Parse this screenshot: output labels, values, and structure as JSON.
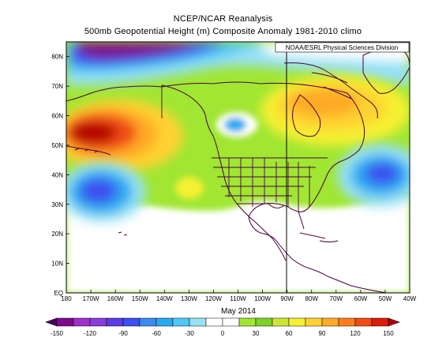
{
  "title": "NCEP/NCAR Reanalysis",
  "subtitle": "500mb Geopotential Height (m) Composite Anomaly 1981-2010 climo",
  "credit": "NOAA/ESRL Physical Sciences Division",
  "date_label": "May 2014",
  "lat_labels": [
    "80N",
    "70N",
    "60N",
    "50N",
    "40N",
    "30N",
    "20N",
    "10N",
    "EQ"
  ],
  "lon_labels": [
    "180",
    "170W",
    "160W",
    "150W",
    "140W",
    "130W",
    "120W",
    "110W",
    "100W",
    "90W",
    "80W",
    "70W",
    "60W",
    "50W",
    "40W"
  ],
  "colorbar": {
    "ticks": [
      "-150",
      "-120",
      "-90",
      "-60",
      "-30",
      "0",
      "30",
      "60",
      "90",
      "120",
      "150"
    ],
    "colors": [
      "#4a0060",
      "#7d0a8c",
      "#a030c8",
      "#8c3cdc",
      "#5a3ce6",
      "#3c50f0",
      "#3c8cf0",
      "#28aaf0",
      "#50c8f5",
      "#96e1f5",
      "#ffffff",
      "#ffffff",
      "#a0e632",
      "#7dd228",
      "#cde632",
      "#f5f032",
      "#ffd232",
      "#ffaa28",
      "#ff7d1e",
      "#f04b14",
      "#dc1e0a",
      "#b40000"
    ]
  },
  "chart_data": {
    "type": "heatmap",
    "variable": "500mb Geopotential Height (m) Composite Anomaly",
    "climatology": "1981-2010",
    "period": "May 2014",
    "lon_range": [
      -180,
      -40
    ],
    "lat_range": [
      0,
      85
    ],
    "value_range": [
      -150,
      150
    ],
    "features": [
      {
        "type": "low",
        "approx_lat": 82,
        "approx_lon": -160,
        "approx_value": -120
      },
      {
        "type": "high",
        "approx_lat": 53,
        "approx_lon": -172,
        "approx_value": 120
      },
      {
        "type": "low",
        "approx_lat": 37,
        "approx_lon": -168,
        "approx_value": -80
      },
      {
        "type": "high",
        "approx_lat": 62,
        "approx_lon": -85,
        "approx_value": 70
      },
      {
        "type": "low",
        "approx_lat": 56,
        "approx_lon": -123,
        "approx_value": -40
      },
      {
        "type": "low",
        "approx_lat": 40,
        "approx_lon": -50,
        "approx_value": -80
      },
      {
        "type": "high",
        "approx_lat": 36,
        "approx_lon": -132,
        "approx_value": 40
      }
    ]
  }
}
